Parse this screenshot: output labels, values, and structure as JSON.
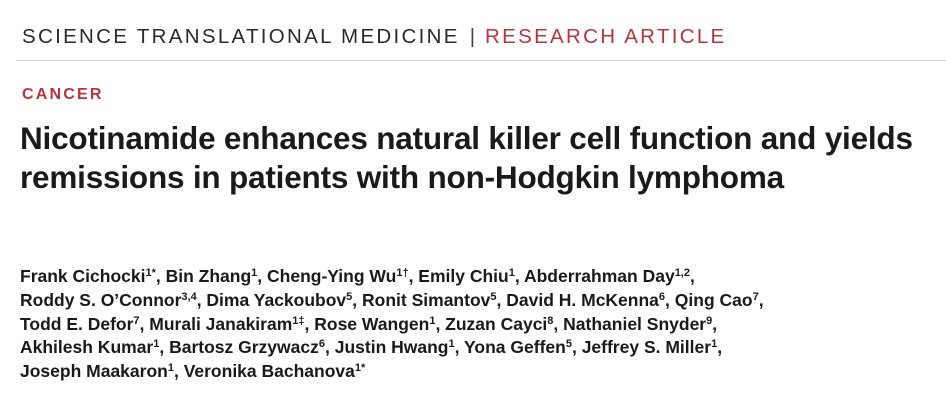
{
  "header": {
    "journal": "SCIENCE TRANSLATIONAL MEDICINE",
    "separator": "|",
    "article_type": "RESEARCH ARTICLE"
  },
  "category": "CANCER",
  "title": "Nicotinamide enhances natural killer cell function and yields remissions in patients with non-Hodgkin lymphoma",
  "author_lines": [
    [
      {
        "name": "Frank Cichocki",
        "sup": "1",
        "mark": "*"
      },
      {
        "name": "Bin Zhang",
        "sup": "1",
        "mark": ""
      },
      {
        "name": "Cheng-Ying Wu",
        "sup": "1",
        "mark": "†"
      },
      {
        "name": "Emily Chiu",
        "sup": "1",
        "mark": ""
      },
      {
        "name": "Abderrahman Day",
        "sup": "1,2",
        "mark": ""
      }
    ],
    [
      {
        "name": "Roddy S. O’Connor",
        "sup": "3,4",
        "mark": ""
      },
      {
        "name": "Dima Yackoubov",
        "sup": "5",
        "mark": ""
      },
      {
        "name": "Ronit Simantov",
        "sup": "5",
        "mark": ""
      },
      {
        "name": "David H. McKenna",
        "sup": "6",
        "mark": ""
      },
      {
        "name": "Qing Cao",
        "sup": "7",
        "mark": ""
      }
    ],
    [
      {
        "name": "Todd E. Defor",
        "sup": "7",
        "mark": ""
      },
      {
        "name": "Murali Janakiram",
        "sup": "1",
        "mark": "‡"
      },
      {
        "name": "Rose Wangen",
        "sup": "1",
        "mark": ""
      },
      {
        "name": "Zuzan Cayci",
        "sup": "8",
        "mark": ""
      },
      {
        "name": "Nathaniel Snyder",
        "sup": "9",
        "mark": ""
      }
    ],
    [
      {
        "name": "Akhilesh Kumar",
        "sup": "1",
        "mark": ""
      },
      {
        "name": "Bartosz Grzywacz",
        "sup": "6",
        "mark": ""
      },
      {
        "name": "Justin Hwang",
        "sup": "1",
        "mark": ""
      },
      {
        "name": "Yona Geffen",
        "sup": "5",
        "mark": ""
      },
      {
        "name": "Jeffrey S. Miller",
        "sup": "1",
        "mark": ""
      }
    ],
    [
      {
        "name": "Joseph Maakaron",
        "sup": "1",
        "mark": ""
      },
      {
        "name": "Veronika Bachanova",
        "sup": "1",
        "mark": "*"
      }
    ]
  ]
}
